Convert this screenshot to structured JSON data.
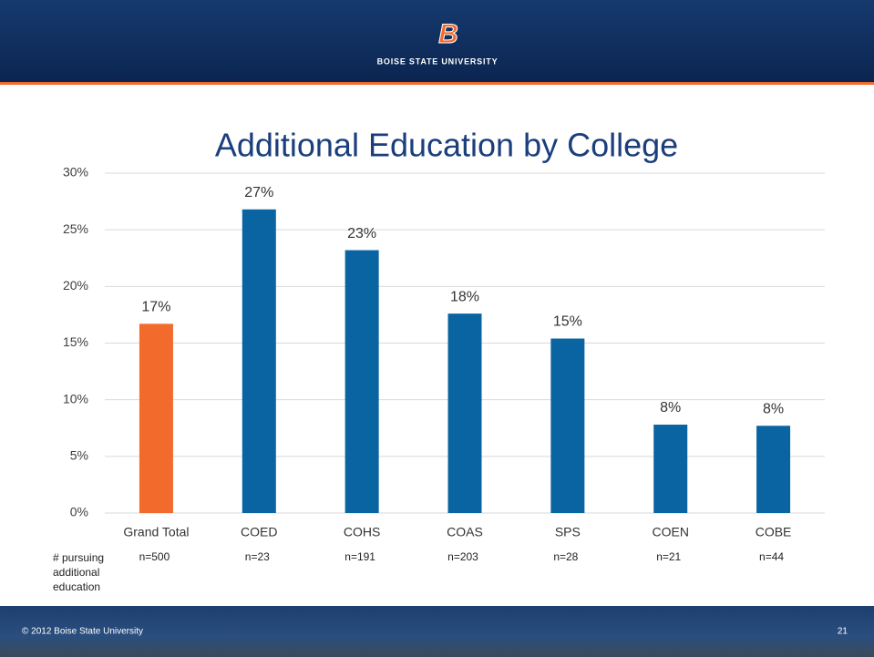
{
  "header": {
    "logo_mark": "B",
    "logo_text": "BOISE STATE UNIVERSITY"
  },
  "footer": {
    "copyright": "© 2012 Boise State University",
    "page_number": "21"
  },
  "chart_data": {
    "type": "bar",
    "title": "Additional Education by College",
    "categories": [
      "Grand Total",
      "COED",
      "COHS",
      "COAS",
      "SPS",
      "COEN",
      "COBE"
    ],
    "values": [
      16.7,
      26.8,
      23.2,
      17.6,
      15.4,
      7.8,
      7.7
    ],
    "value_labels": [
      "17%",
      "27%",
      "23%",
      "18%",
      "15%",
      "8%",
      "8%"
    ],
    "colors": [
      "#f26a2c",
      "#0a64a1",
      "#0a64a1",
      "#0a64a1",
      "#0a64a1",
      "#0a64a1",
      "#0a64a1"
    ],
    "ylim": [
      0,
      30
    ],
    "yticks": [
      {
        "value": 0,
        "label": "0%"
      },
      {
        "value": 5,
        "label": "5%"
      },
      {
        "value": 10,
        "label": "10%"
      },
      {
        "value": 15,
        "label": "15%"
      },
      {
        "value": 20,
        "label": "20%"
      },
      {
        "value": 25,
        "label": "25%"
      },
      {
        "value": 30,
        "label": "30%"
      }
    ],
    "grid": true,
    "sample_label": "# pursuing additional education",
    "sample_sizes": [
      "n=500",
      "n=23",
      "n=191",
      "n=203",
      "n=28",
      "n=21",
      "n=44"
    ]
  }
}
